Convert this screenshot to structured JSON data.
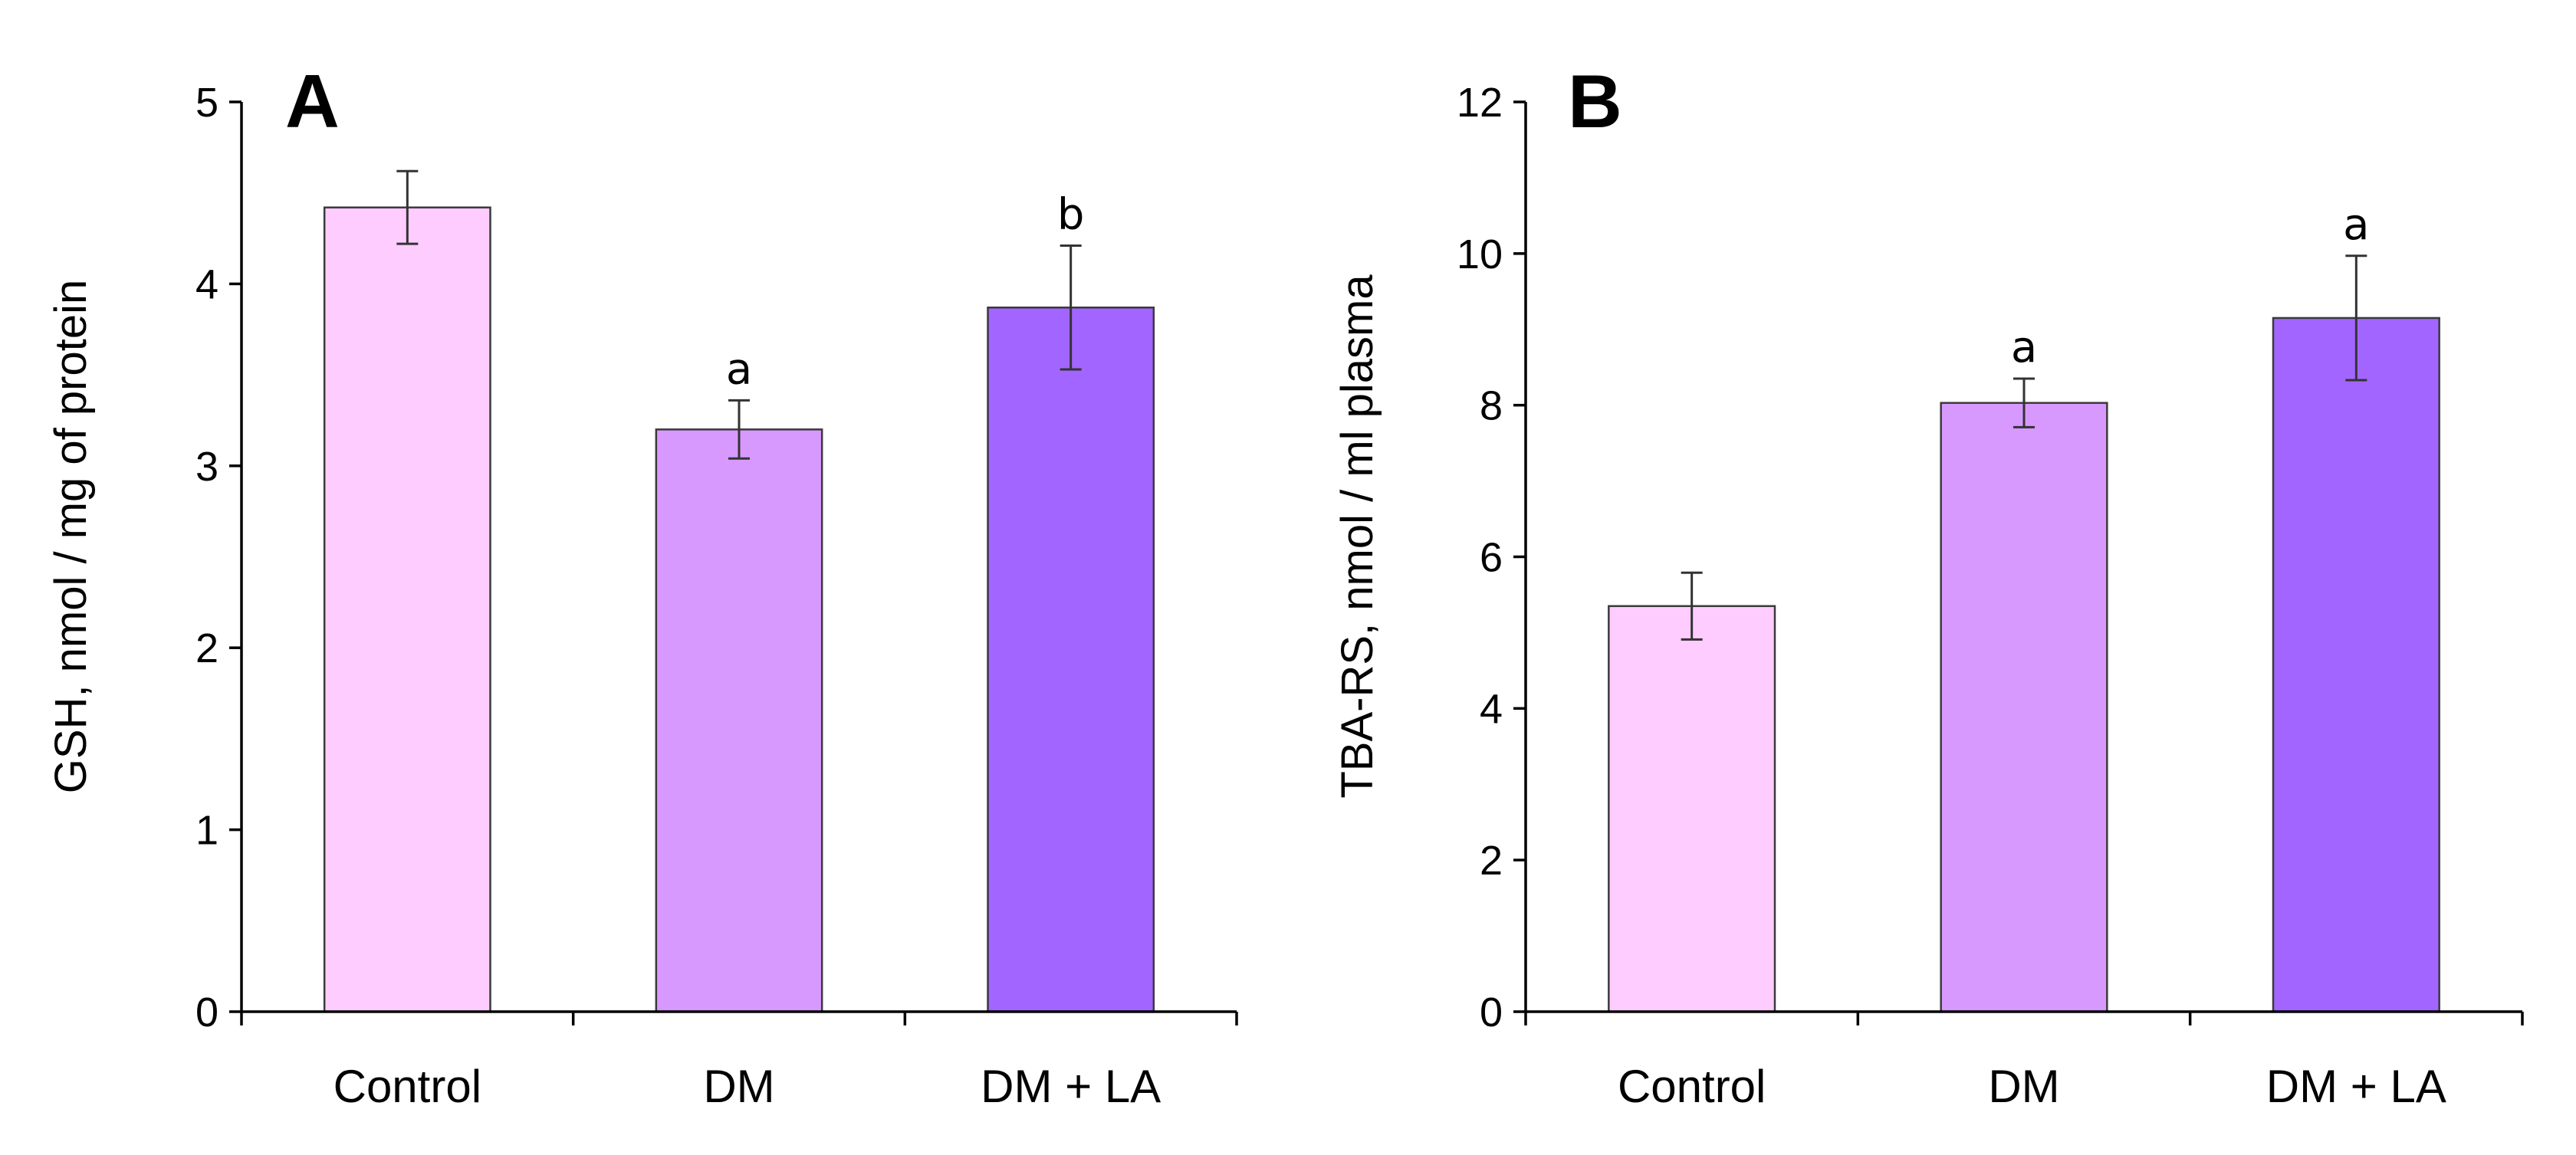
{
  "chart_data": [
    {
      "panel": "A",
      "type": "bar",
      "ylabel": "GSH, nmol / mg of protein",
      "ylim": [
        0,
        5
      ],
      "yticks": [
        0,
        1,
        2,
        3,
        4,
        5
      ],
      "categories": [
        "Control",
        "DM",
        "DM + LA"
      ],
      "values": [
        4.42,
        3.2,
        3.87
      ],
      "errors": [
        0.2,
        0.16,
        0.34
      ],
      "significance": [
        "",
        "a",
        "b"
      ],
      "colors": [
        "#ffccff",
        "#d899ff",
        "#a365ff"
      ],
      "grid": false,
      "legend": "none"
    },
    {
      "panel": "B",
      "type": "bar",
      "ylabel": "TBA-RS, nmol / ml  plasma",
      "ylim": [
        0,
        12
      ],
      "yticks": [
        0,
        2,
        4,
        6,
        8,
        10,
        12
      ],
      "categories": [
        "Control",
        "DM",
        "DM + LA"
      ],
      "values": [
        5.35,
        8.03,
        9.15
      ],
      "errors": [
        0.44,
        0.32,
        0.82
      ],
      "significance": [
        "",
        "a",
        "a"
      ],
      "colors": [
        "#ffccff",
        "#d899ff",
        "#a365ff"
      ],
      "grid": false,
      "legend": "none"
    }
  ]
}
